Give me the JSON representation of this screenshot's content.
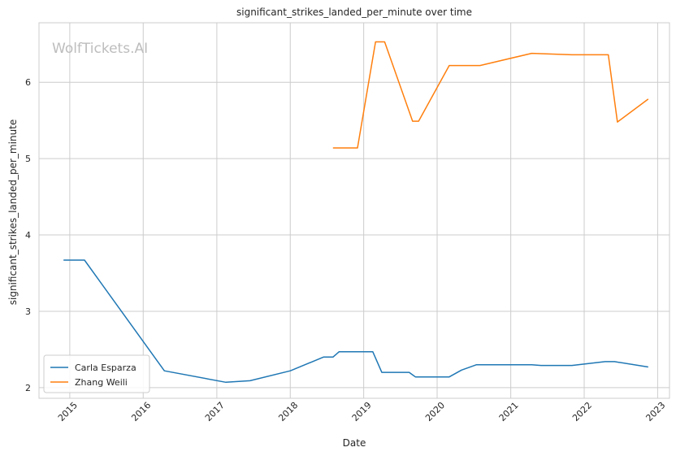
{
  "chart_data": {
    "type": "line",
    "title": "significant_strikes_landed_per_minute over time",
    "xlabel": "Date",
    "ylabel": "significant_strikes_landed_per_minute",
    "watermark": "WolfTickets.AI",
    "x_ticks": [
      "2015",
      "2016",
      "2017",
      "2018",
      "2019",
      "2020",
      "2021",
      "2022",
      "2023"
    ],
    "y_ticks": [
      "2",
      "3",
      "4",
      "5",
      "6"
    ],
    "xlim": [
      "2014-08-01",
      "2023-03-01"
    ],
    "ylim": [
      1.86,
      6.78
    ],
    "grid": true,
    "legend_position": "lower-left",
    "series": [
      {
        "name": "Carla Esparza",
        "color": "#1f77b4",
        "points": [
          [
            "2014-12-01",
            3.67
          ],
          [
            "2015-03-15",
            3.67
          ],
          [
            "2016-04-15",
            2.22
          ],
          [
            "2017-02-15",
            2.07
          ],
          [
            "2017-06-15",
            2.09
          ],
          [
            "2018-01-01",
            2.22
          ],
          [
            "2018-06-15",
            2.4
          ],
          [
            "2018-08-01",
            2.4
          ],
          [
            "2018-09-01",
            2.47
          ],
          [
            "2019-02-15",
            2.47
          ],
          [
            "2019-04-01",
            2.2
          ],
          [
            "2019-08-15",
            2.2
          ],
          [
            "2019-09-15",
            2.14
          ],
          [
            "2020-03-01",
            2.14
          ],
          [
            "2020-05-01",
            2.23
          ],
          [
            "2020-07-15",
            2.3
          ],
          [
            "2021-04-15",
            2.3
          ],
          [
            "2021-06-01",
            2.29
          ],
          [
            "2021-11-01",
            2.29
          ],
          [
            "2022-04-15",
            2.34
          ],
          [
            "2022-06-01",
            2.34
          ],
          [
            "2022-11-15",
            2.27
          ]
        ]
      },
      {
        "name": "Zhang Weili",
        "color": "#ff7f0e",
        "points": [
          [
            "2018-08-01",
            5.14
          ],
          [
            "2018-12-01",
            5.14
          ],
          [
            "2019-03-01",
            6.53
          ],
          [
            "2019-04-15",
            6.53
          ],
          [
            "2019-09-01",
            5.49
          ],
          [
            "2019-10-01",
            5.49
          ],
          [
            "2020-03-01",
            6.22
          ],
          [
            "2020-08-01",
            6.22
          ],
          [
            "2021-04-15",
            6.38
          ],
          [
            "2021-11-01",
            6.36
          ],
          [
            "2022-05-01",
            6.36
          ],
          [
            "2022-06-15",
            5.48
          ],
          [
            "2022-11-15",
            5.78
          ]
        ]
      }
    ]
  }
}
